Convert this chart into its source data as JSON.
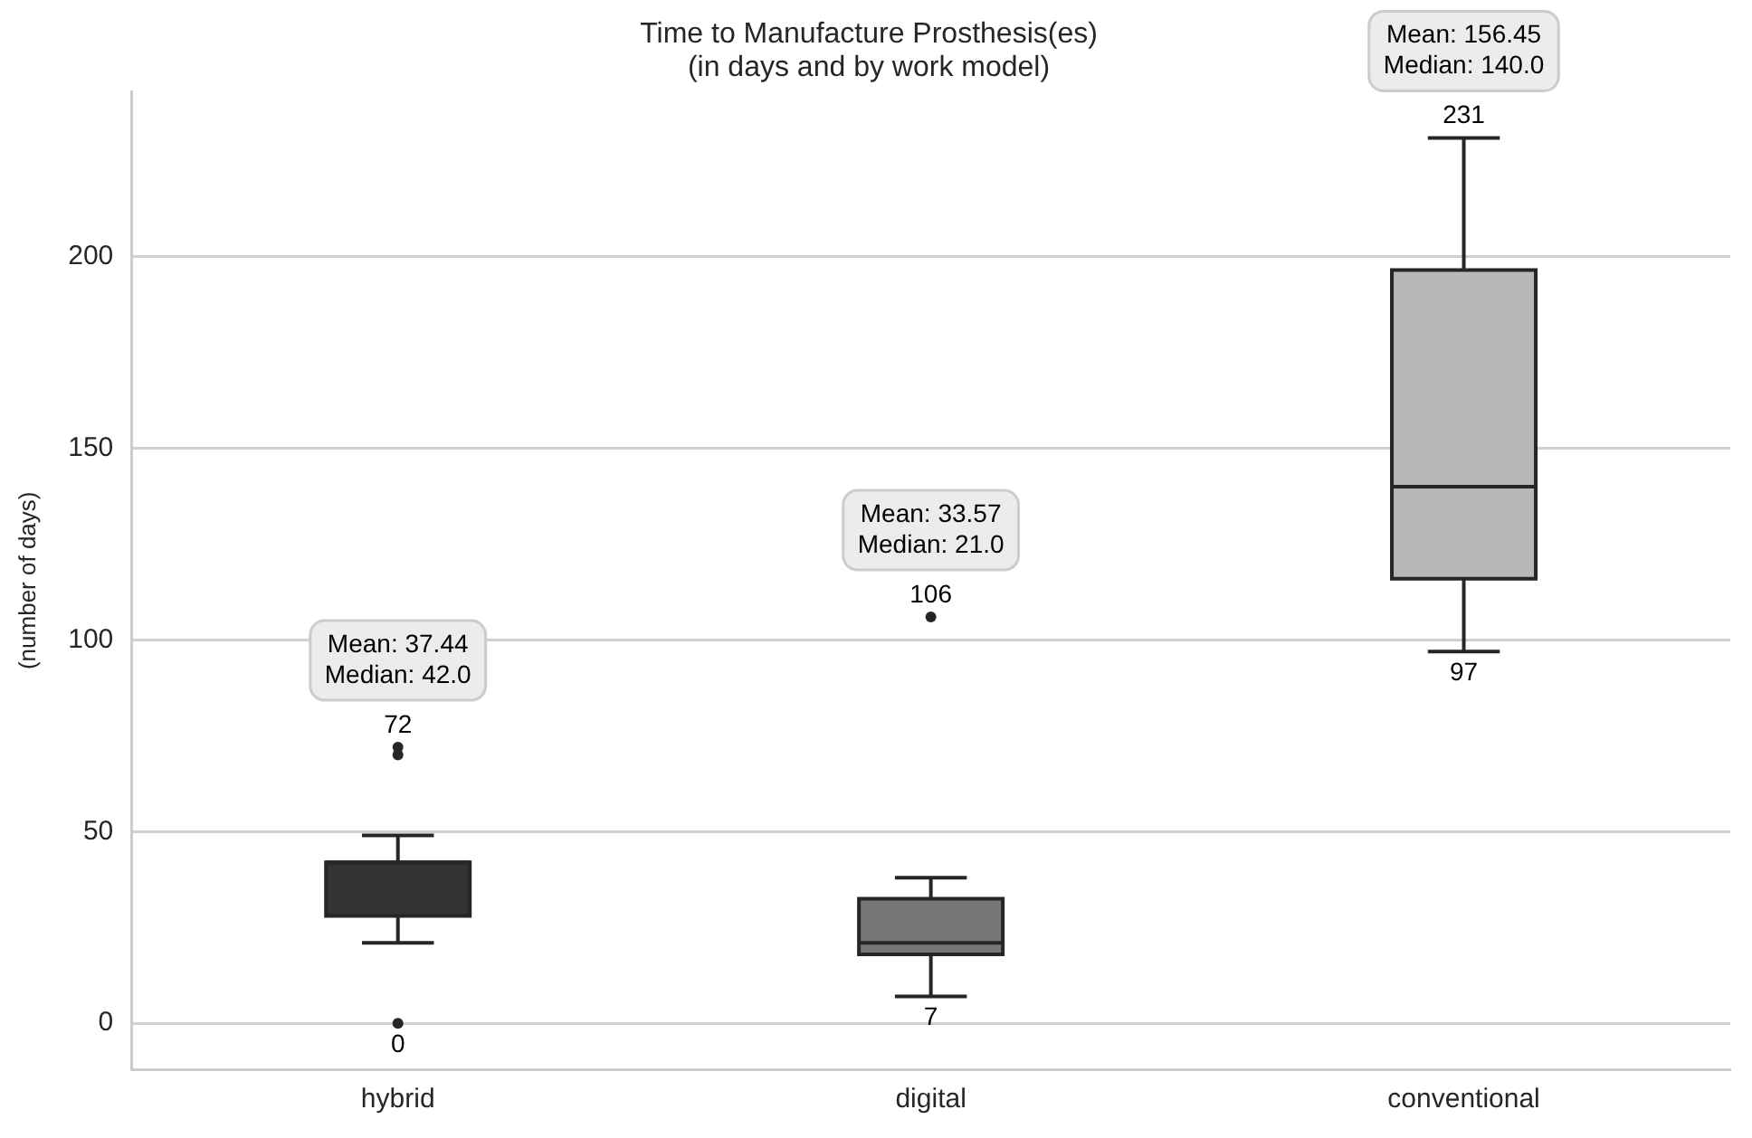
{
  "chart_data": {
    "type": "box",
    "title": "Time to Manufacture Prosthesis(es)",
    "subtitle": "(in days and by work model)",
    "ylabel": "(number of days)",
    "categories": [
      "hybrid",
      "digital",
      "conventional"
    ],
    "colors": [
      "#333333",
      "#777777",
      "#b8b8b8"
    ],
    "boxes": [
      {
        "low": 21,
        "q1": 28,
        "median": 42,
        "q3": 42,
        "high": 49,
        "outliers": [
          0,
          70,
          72
        ]
      },
      {
        "low": 7,
        "q1": 18,
        "median": 21,
        "q3": 32.5,
        "high": 38,
        "outliers": [
          106
        ]
      },
      {
        "low": 97,
        "q1": 116,
        "median": 140,
        "q3": 196.5,
        "high": 231
      }
    ],
    "ylim": [
      -12,
      243
    ],
    "yticks": [
      0,
      50,
      100,
      150,
      200
    ],
    "grid": "y",
    "legend": false,
    "annotations": [
      "Mean: 37.44\nMedian: 42.0",
      "72",
      "0",
      "Mean: 33.57\nMedian: 21.0",
      "106",
      "7",
      "Mean: 156.45\nMedian: 140.0",
      "231",
      "97"
    ]
  }
}
